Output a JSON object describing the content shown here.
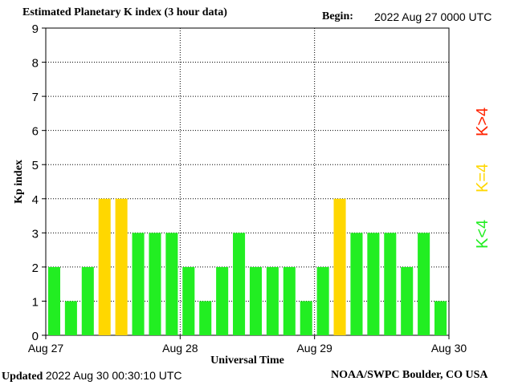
{
  "header": {
    "title": "Estimated Planetary K index (3 hour data)",
    "begin_label": "Begin:",
    "begin_value": "2022 Aug 27 0000 UTC"
  },
  "footer": {
    "updated_label": "Updated",
    "updated_value": "2022 Aug 30 00:30:10 UTC",
    "source": "NOAA/SWPC Boulder, CO USA"
  },
  "legend": {
    "items": [
      {
        "label": "K<4",
        "color": "#22ee22"
      },
      {
        "label": "K=4",
        "color": "#ffd700"
      },
      {
        "label": "K>4",
        "color": "#ff2200"
      }
    ]
  },
  "chart_data": {
    "type": "bar",
    "title": "Estimated Planetary K index (3 hour data)",
    "xlabel": "Universal Time",
    "ylabel": "Kp index",
    "ylim": [
      0,
      9
    ],
    "yticks": [
      "0",
      "1",
      "2",
      "3",
      "4",
      "5",
      "6",
      "7",
      "8",
      "9"
    ],
    "day_labels": [
      "Aug 27",
      "Aug 28",
      "Aug 29",
      "Aug 30"
    ],
    "bars_per_day": 8,
    "values": [
      2,
      1,
      2,
      4,
      4,
      3,
      3,
      3,
      2,
      1,
      2,
      3,
      2,
      2,
      2,
      1,
      2,
      4,
      3,
      3,
      3,
      2,
      3,
      1
    ],
    "colors": {
      "below4": "#22ee22",
      "equal4": "#ffd700",
      "above4": "#ff2200"
    },
    "grid": true
  }
}
